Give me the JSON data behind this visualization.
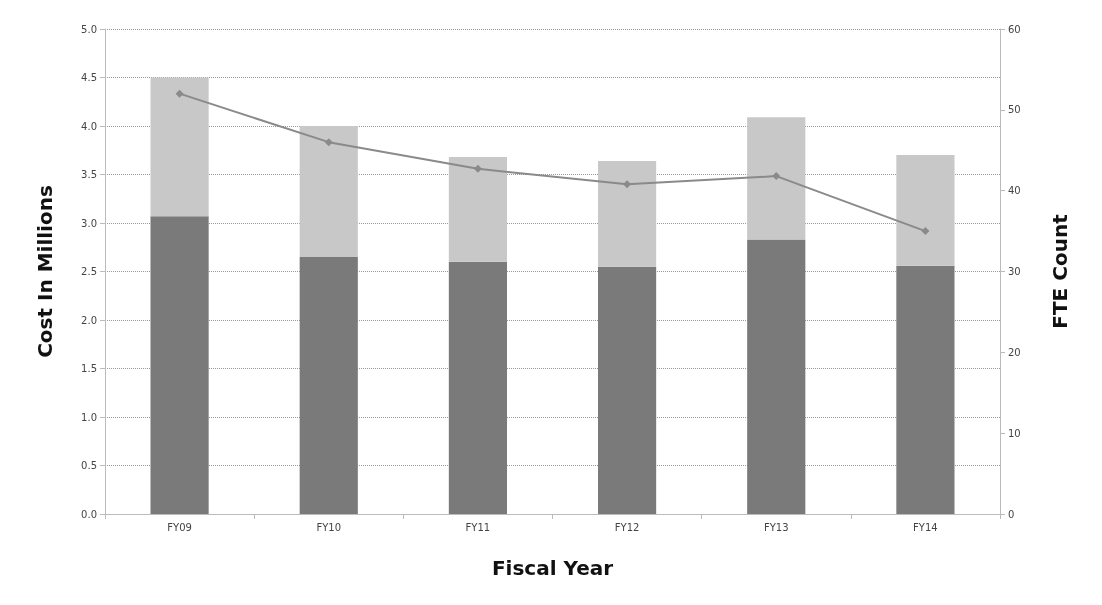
{
  "chart_data": {
    "type": "bar",
    "stacked": true,
    "xlabel": "Fiscal Year",
    "ylabel": "Cost In Millions",
    "y2label": "FTE Count",
    "categories": [
      "FY09",
      "FY10",
      "FY11",
      "FY12",
      "FY13",
      "FY14"
    ],
    "series": [
      {
        "color": "#7a7a7a",
        "values": [
          3.07,
          2.65,
          2.6,
          2.55,
          2.83,
          2.56
        ]
      },
      {
        "color": "#c8c8c8",
        "values": [
          1.43,
          1.35,
          1.08,
          1.09,
          1.26,
          1.14
        ]
      },
      {
        "type": "line",
        "axis": "y2",
        "color": "#8a8a8a",
        "marker": "diamond",
        "values": [
          52,
          46,
          42.7,
          40.8,
          41.8,
          35
        ]
      }
    ],
    "ylim": [
      0,
      5
    ],
    "yticks": [
      {
        "value": 0,
        "label": "0.0"
      },
      0.5,
      {
        "value": 1,
        "label": "1.0"
      },
      1.5,
      {
        "value": 2,
        "label": "2.0"
      },
      2.5,
      {
        "value": 3,
        "label": "3.0"
      },
      3.5,
      {
        "value": 4,
        "label": "4.0"
      },
      4.5,
      {
        "value": 5,
        "label": "5.0"
      }
    ],
    "y2lim": [
      0,
      60
    ],
    "y2ticks": [
      0,
      10,
      20,
      30,
      40,
      50,
      60
    ],
    "grid": "y"
  }
}
